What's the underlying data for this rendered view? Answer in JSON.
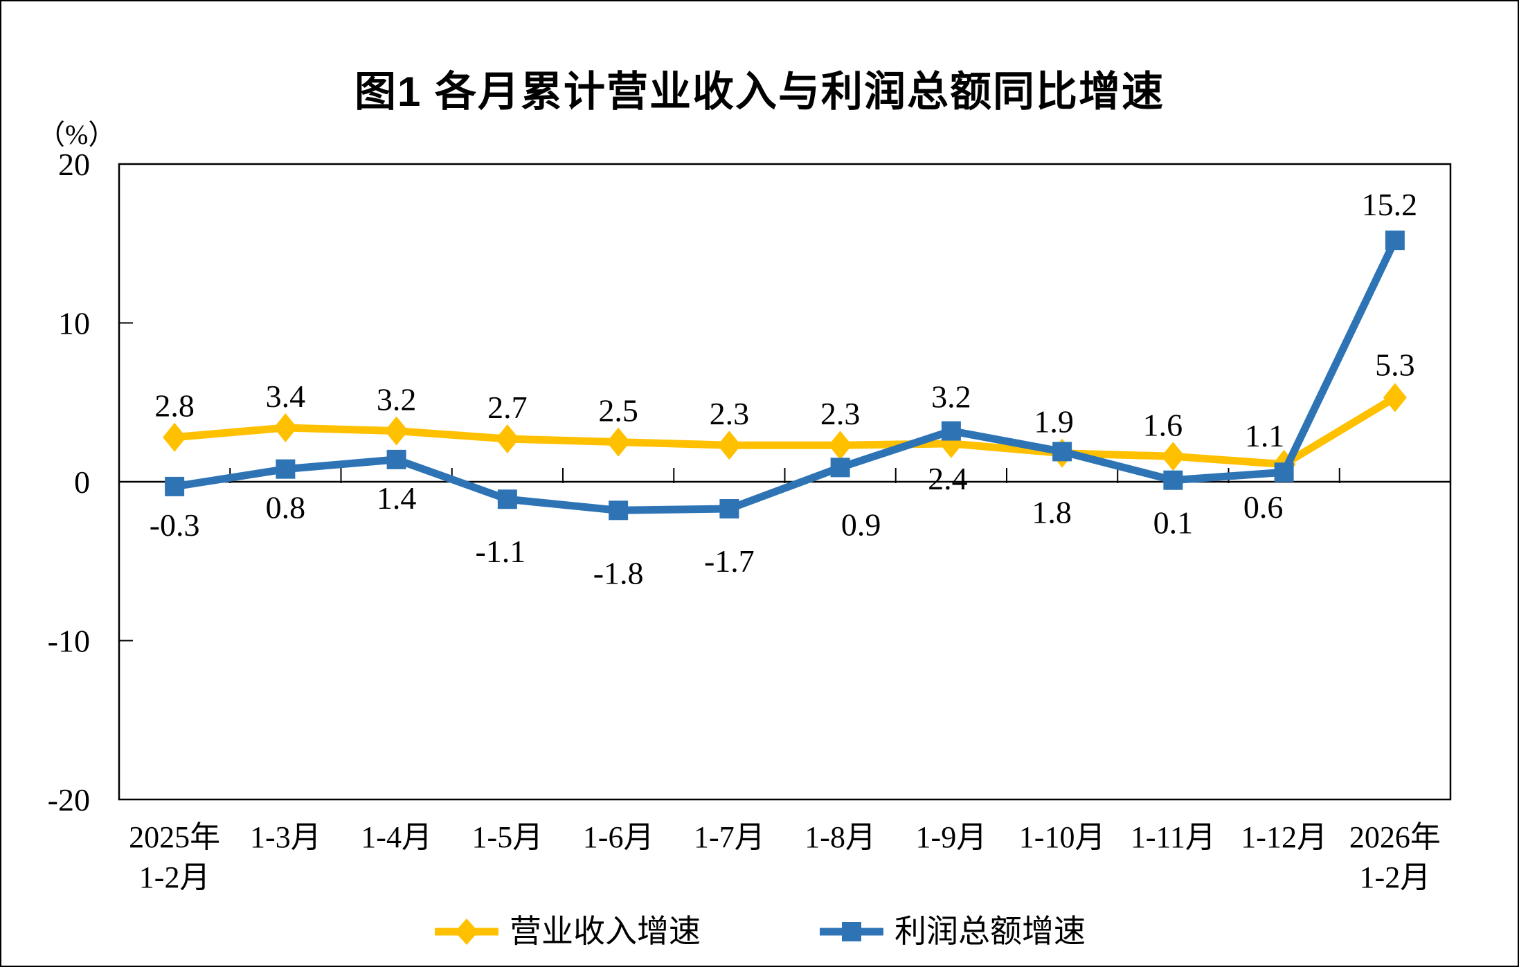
{
  "page": {
    "background": "#FFFFFF",
    "frame_color": "#000000"
  },
  "chart_data": {
    "type": "line",
    "title": "图1  各月累计营业收入与利润总额同比增速",
    "unit_label": "（%）",
    "categories": [
      [
        "2025年",
        "1-2月"
      ],
      [
        "1-3月"
      ],
      [
        "1-4月"
      ],
      [
        "1-5月"
      ],
      [
        "1-6月"
      ],
      [
        "1-7月"
      ],
      [
        "1-8月"
      ],
      [
        "1-9月"
      ],
      [
        "1-10月"
      ],
      [
        "1-11月"
      ],
      [
        "1-12月"
      ],
      [
        "2026年",
        "1-2月"
      ]
    ],
    "y_axis": {
      "min": -20,
      "max": 20,
      "step": 10,
      "ticks": [
        20,
        10,
        0,
        -10,
        -20
      ]
    },
    "grid": "zero-line-only",
    "legend_position": "bottom",
    "series": [
      {
        "name": "营业收入增速",
        "color": "#FFC000",
        "marker": "diamond",
        "values": [
          2.8,
          3.4,
          3.2,
          2.7,
          2.5,
          2.3,
          2.3,
          2.4,
          1.8,
          1.6,
          1.1,
          5.3
        ],
        "label_offsets": [
          [
            0,
            -46
          ],
          [
            0,
            -46
          ],
          [
            0,
            -46
          ],
          [
            0,
            -46
          ],
          [
            0,
            -46
          ],
          [
            0,
            -46
          ],
          [
            0,
            -46
          ],
          [
            -5,
            50
          ],
          [
            -15,
            85
          ],
          [
            -15,
            -46
          ],
          [
            -28,
            -42
          ],
          [
            0,
            -48
          ]
        ]
      },
      {
        "name": "利润总额增速",
        "color": "#2E74B5",
        "marker": "square",
        "values": [
          -0.3,
          0.8,
          1.4,
          -1.1,
          -1.8,
          -1.7,
          0.9,
          3.2,
          1.9,
          0.1,
          0.6,
          15.2
        ],
        "label_offsets": [
          [
            0,
            55
          ],
          [
            0,
            55
          ],
          [
            0,
            55
          ],
          [
            -10,
            75
          ],
          [
            0,
            90
          ],
          [
            0,
            75
          ],
          [
            30,
            82
          ],
          [
            0,
            -50
          ],
          [
            -12,
            -44
          ],
          [
            0,
            61
          ],
          [
            -30,
            50
          ],
          [
            -8,
            -52
          ]
        ]
      }
    ]
  }
}
